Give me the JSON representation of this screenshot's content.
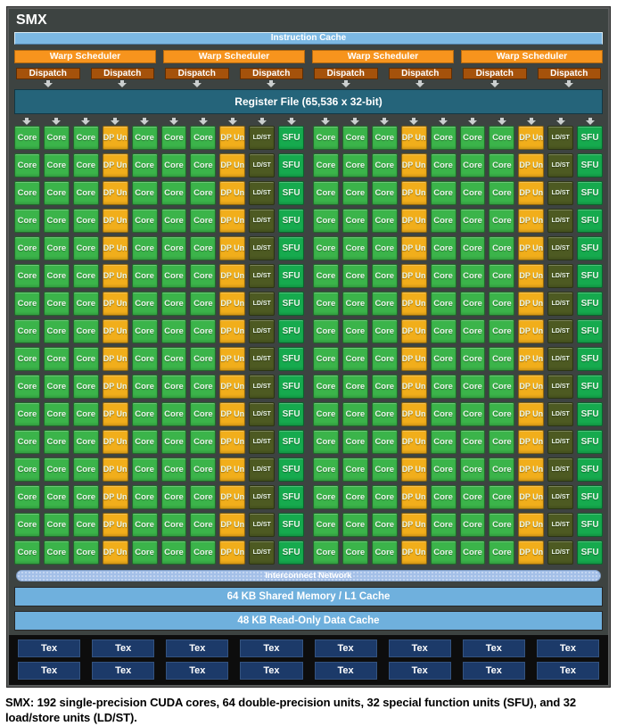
{
  "title": "SMX",
  "instruction_cache": "Instruction Cache",
  "warp_schedulers": {
    "count": 4,
    "label": "Warp Scheduler",
    "dispatch_label": "Dispatch",
    "dispatch_per_scheduler": 2
  },
  "register_file": "Register File (65,536 x 32-bit)",
  "grid": {
    "rows": 16,
    "halves_per_row": 2,
    "half_pattern": [
      "core",
      "core",
      "core",
      "dp",
      "core",
      "core",
      "core",
      "dp",
      "ldst",
      "sfu"
    ],
    "cell_labels": {
      "core": "Core",
      "dp": "DP Unit",
      "ldst": "LD/ST",
      "sfu": "SFU"
    },
    "cell_names": {
      "core": "core-cell",
      "dp": "dp-unit-cell",
      "ldst": "ld-st-cell",
      "sfu": "sfu-cell"
    }
  },
  "interconnect": "Interconnect Network",
  "shared_memory": "64 KB Shared Memory / L1 Cache",
  "readonly_cache": "48 KB Read-Only Data Cache",
  "tex": {
    "rows": 2,
    "per_row": 8,
    "label": "Tex"
  },
  "caption": "SMX: 192 single-precision CUDA cores, 64 double-precision units, 32 special function units (SFU), and 32 load/store units (LD/ST).",
  "colors": {
    "core": "#3bb44a",
    "dp": "#f1ae1b",
    "ldst": "#4d5a22",
    "sfu": "#16aa4e",
    "warp": "#f7941d",
    "dispatch": "#a5520b",
    "icache": "#7cb8e3",
    "shared": "#6fb0dd",
    "interconnect": "#a4c0e8",
    "register": "#25647a",
    "tex": "#1c3a69",
    "frame": "#3d4341",
    "band": "#0d0d0d",
    "arrow": "#cbcfcf"
  }
}
